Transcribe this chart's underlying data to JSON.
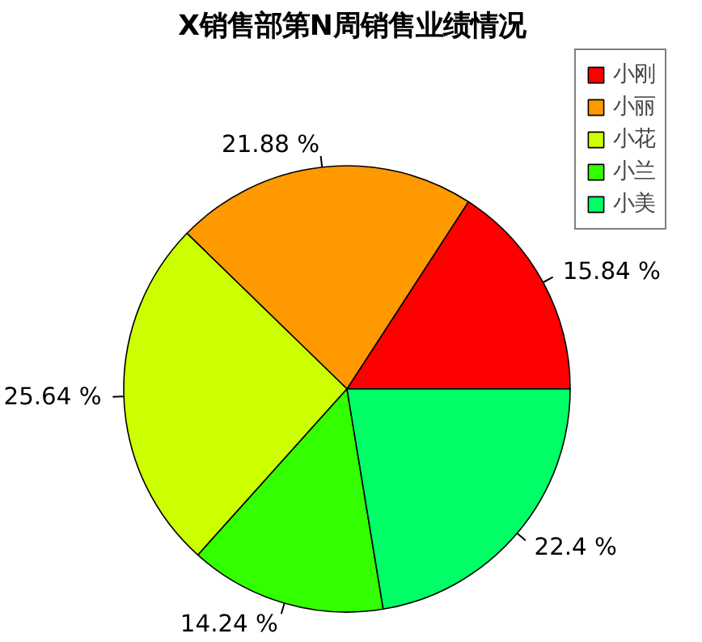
{
  "chart_data": {
    "type": "pie",
    "title": "X销售部第N周销售业绩情况",
    "categories": [
      "小刚",
      "小丽",
      "小花",
      "小兰",
      "小美"
    ],
    "values": [
      15.84,
      21.88,
      25.64,
      14.24,
      22.4
    ],
    "colors": [
      "#ff0000",
      "#ff9900",
      "#ccff00",
      "#33ff00",
      "#00ff66"
    ],
    "value_labels": [
      "15.84 %",
      "21.88 %",
      "25.64 %",
      "14.24 %",
      "22.4 %"
    ],
    "legend": "top right"
  }
}
